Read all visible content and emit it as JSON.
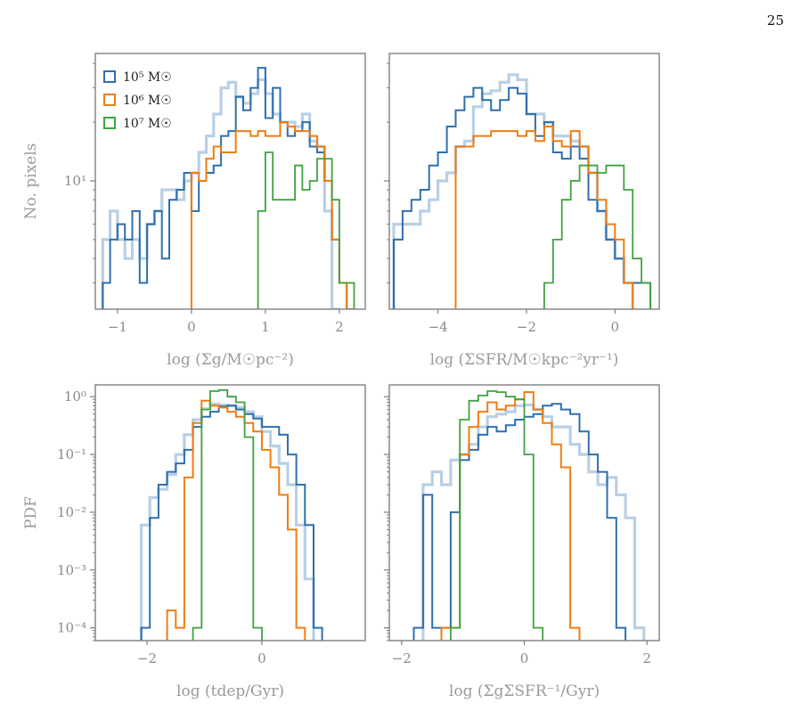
{
  "page_number": "25",
  "colors": {
    "blue": "#2f6fad",
    "orange": "#f07d12",
    "green": "#3fa33f",
    "lightblue": "#b8d0e6",
    "frame": "#808080",
    "text": "#9a9a9a"
  },
  "legend": [
    "10⁵ M☉",
    "10⁶ M☉",
    "10⁷ M☉"
  ],
  "chart_data": [
    {
      "type": "histogram",
      "xlabel": "log (Σg/M☉pc⁻²)",
      "ylabel": "No. pixels",
      "xlim": [
        -1.3,
        2.35
      ],
      "ylim": [
        2.2,
        45
      ],
      "yscale": "log",
      "xticks": [
        -1,
        0,
        1,
        2
      ],
      "xtick_labels": [
        "−1",
        "0",
        "1",
        "2"
      ],
      "yticks": [
        10
      ],
      "ytick_labels": [
        "10¹"
      ],
      "bin_start": -1.2,
      "bin_width": 0.1,
      "series": [
        {
          "key": "blue_light",
          "values": [
            5,
            7,
            5,
            4,
            5,
            4,
            6,
            7,
            9,
            9,
            8,
            10,
            11,
            14,
            17,
            22,
            30,
            32,
            27,
            25,
            28,
            33,
            28,
            22,
            20,
            20,
            19,
            22,
            16,
            15,
            7,
            2,
            0,
            0
          ]
        },
        {
          "key": "blue",
          "values": [
            3,
            5,
            6,
            5,
            7,
            3,
            6,
            7,
            4,
            8,
            9,
            11,
            7,
            10,
            11,
            12,
            17,
            18,
            27,
            23,
            30,
            38,
            21,
            30,
            20,
            17,
            18,
            20,
            15,
            14,
            10,
            5,
            3,
            0
          ]
        },
        {
          "key": "orange",
          "values": [
            0,
            0,
            0,
            0,
            0,
            0,
            0,
            0,
            0,
            0,
            0,
            0,
            11,
            10,
            13,
            15,
            14,
            14,
            18,
            18,
            17,
            18,
            17,
            17,
            20,
            19,
            18,
            18,
            17,
            15,
            10,
            5,
            3,
            2
          ]
        },
        {
          "key": "green",
          "values": [
            0,
            0,
            0,
            0,
            0,
            0,
            0,
            0,
            0,
            0,
            0,
            0,
            0,
            0,
            0,
            0,
            0,
            0,
            0,
            0,
            0,
            7,
            14,
            8,
            8,
            8,
            12,
            9,
            10,
            13,
            13,
            8,
            3,
            3
          ]
        }
      ]
    },
    {
      "type": "histogram",
      "xlabel": "log (ΣSFR/M☉kpc⁻²yr⁻¹)",
      "ylabel": "",
      "xlim": [
        -5.1,
        1.0
      ],
      "ylim": [
        2.2,
        45
      ],
      "yscale": "log",
      "xticks": [
        -4,
        -2,
        0
      ],
      "xtick_labels": [
        "−4",
        "−2",
        "0"
      ],
      "yticks": [
        10
      ],
      "ytick_labels": [
        ""
      ],
      "bin_start": -5.0,
      "bin_width": 0.2,
      "series": [
        {
          "key": "blue_light",
          "values": [
            6,
            6,
            6,
            7,
            8,
            10,
            11,
            15,
            16,
            24,
            28,
            29,
            32,
            35,
            33,
            22,
            22,
            20,
            17,
            17,
            16,
            15,
            11,
            7,
            5,
            4,
            3,
            0,
            0
          ]
        },
        {
          "key": "blue",
          "values": [
            5,
            7,
            8,
            9,
            12,
            14,
            19,
            23,
            27,
            30,
            26,
            23,
            26,
            30,
            28,
            22,
            17,
            20,
            14,
            13,
            15,
            13,
            8,
            7,
            5,
            4,
            3,
            3,
            3
          ]
        },
        {
          "key": "orange",
          "values": [
            0,
            0,
            0,
            0,
            0,
            0,
            0,
            15,
            15,
            17,
            17,
            18,
            18,
            18,
            17,
            18,
            16,
            19,
            16,
            15,
            18,
            15,
            11,
            8,
            6,
            5,
            3,
            0,
            0
          ]
        },
        {
          "key": "green",
          "values": [
            0,
            0,
            0,
            0,
            0,
            0,
            0,
            0,
            0,
            0,
            0,
            0,
            0,
            0,
            0,
            0,
            0,
            3,
            5,
            8,
            10,
            12,
            12,
            11,
            12,
            12,
            9,
            4,
            3
          ]
        }
      ]
    },
    {
      "type": "histogram",
      "xlabel": "log (tdep/Gyr)",
      "ylabel": "PDF",
      "xlim": [
        -2.9,
        1.8
      ],
      "ylim": [
        6e-05,
        1.6
      ],
      "yscale": "log",
      "xticks": [
        -2,
        0
      ],
      "xtick_labels": [
        "−2",
        "0"
      ],
      "yticks": [
        0.0001,
        0.001,
        0.01,
        0.1,
        1
      ],
      "ytick_labels": [
        "10⁻⁴",
        "10⁻³",
        "10⁻²",
        "10⁻¹",
        "10⁰"
      ],
      "bin_start": -2.1,
      "bin_width": 0.15,
      "series": [
        {
          "key": "blue_light",
          "values": [
            0.006,
            0.018,
            0.025,
            0.045,
            0.1,
            0.22,
            0.4,
            0.62,
            0.75,
            0.72,
            0.7,
            0.65,
            0.55,
            0.45,
            0.25,
            0.14,
            0.07,
            0.03,
            0.006,
            0.0007,
            0
          ]
        },
        {
          "key": "blue",
          "values": [
            0.0001,
            0.008,
            0.03,
            0.05,
            0.07,
            0.12,
            0.3,
            0.45,
            0.55,
            0.68,
            0.7,
            0.6,
            0.5,
            0.42,
            0.3,
            0.3,
            0.22,
            0.1,
            0.03,
            0.006,
            0.0001
          ]
        },
        {
          "key": "orange",
          "values": [
            0,
            0,
            0,
            0.0002,
            0.0001,
            0.04,
            0.35,
            0.85,
            0.7,
            0.65,
            0.55,
            0.45,
            0.35,
            0.25,
            0.12,
            0.06,
            0.02,
            0.005,
            0.0001,
            0,
            0
          ]
        },
        {
          "key": "green",
          "values": [
            0,
            0,
            0,
            0,
            0,
            0,
            0.0001,
            0.6,
            1.25,
            1.3,
            1.0,
            0.8,
            0.2,
            0.0001,
            0,
            0,
            0,
            0,
            0,
            0,
            0
          ]
        }
      ]
    },
    {
      "type": "histogram",
      "xlabel": "log (ΣgΣSFR⁻¹/Gyr)",
      "ylabel": "",
      "xlim": [
        -2.2,
        2.2
      ],
      "ylim": [
        6e-05,
        1.6
      ],
      "yscale": "log",
      "xticks": [
        -2,
        0,
        2
      ],
      "xtick_labels": [
        "−2",
        "0",
        "2"
      ],
      "yticks": [
        0.0001,
        0.001,
        0.01,
        0.1,
        1
      ],
      "ytick_labels": [
        "",
        "",
        "",
        "",
        ""
      ],
      "bin_start": -1.8,
      "bin_width": 0.15,
      "series": [
        {
          "key": "blue_light",
          "values": [
            0,
            0.03,
            0.05,
            0.03,
            0.08,
            0.1,
            0.15,
            0.3,
            0.45,
            0.5,
            0.55,
            0.7,
            0.72,
            0.6,
            0.45,
            0.3,
            0.3,
            0.15,
            0.1,
            0.05,
            0.03,
            0.04,
            0.02,
            0.008,
            0.0001
          ]
        },
        {
          "key": "blue",
          "values": [
            0.0001,
            0.02,
            0.0001,
            0.0001,
            0.01,
            0.08,
            0.12,
            0.22,
            0.3,
            0.25,
            0.32,
            0.4,
            0.45,
            0.5,
            0.7,
            0.75,
            0.6,
            0.5,
            0.25,
            0.1,
            0.05,
            0.008,
            0.0001,
            0,
            0
          ]
        },
        {
          "key": "orange",
          "values": [
            0,
            0,
            0,
            0.0001,
            0.0001,
            0.1,
            0.3,
            0.55,
            0.8,
            0.6,
            0.7,
            0.9,
            1.2,
            0.6,
            0.35,
            0.15,
            0.06,
            0.0001,
            0,
            0,
            0,
            0,
            0,
            0,
            0
          ]
        },
        {
          "key": "green",
          "values": [
            0,
            0,
            0,
            0,
            0.0001,
            0.4,
            0.85,
            1.05,
            1.25,
            1.2,
            1.0,
            0.9,
            0.1,
            0.0001,
            0,
            0,
            0,
            0,
            0,
            0,
            0,
            0,
            0,
            0,
            0
          ]
        }
      ]
    }
  ]
}
